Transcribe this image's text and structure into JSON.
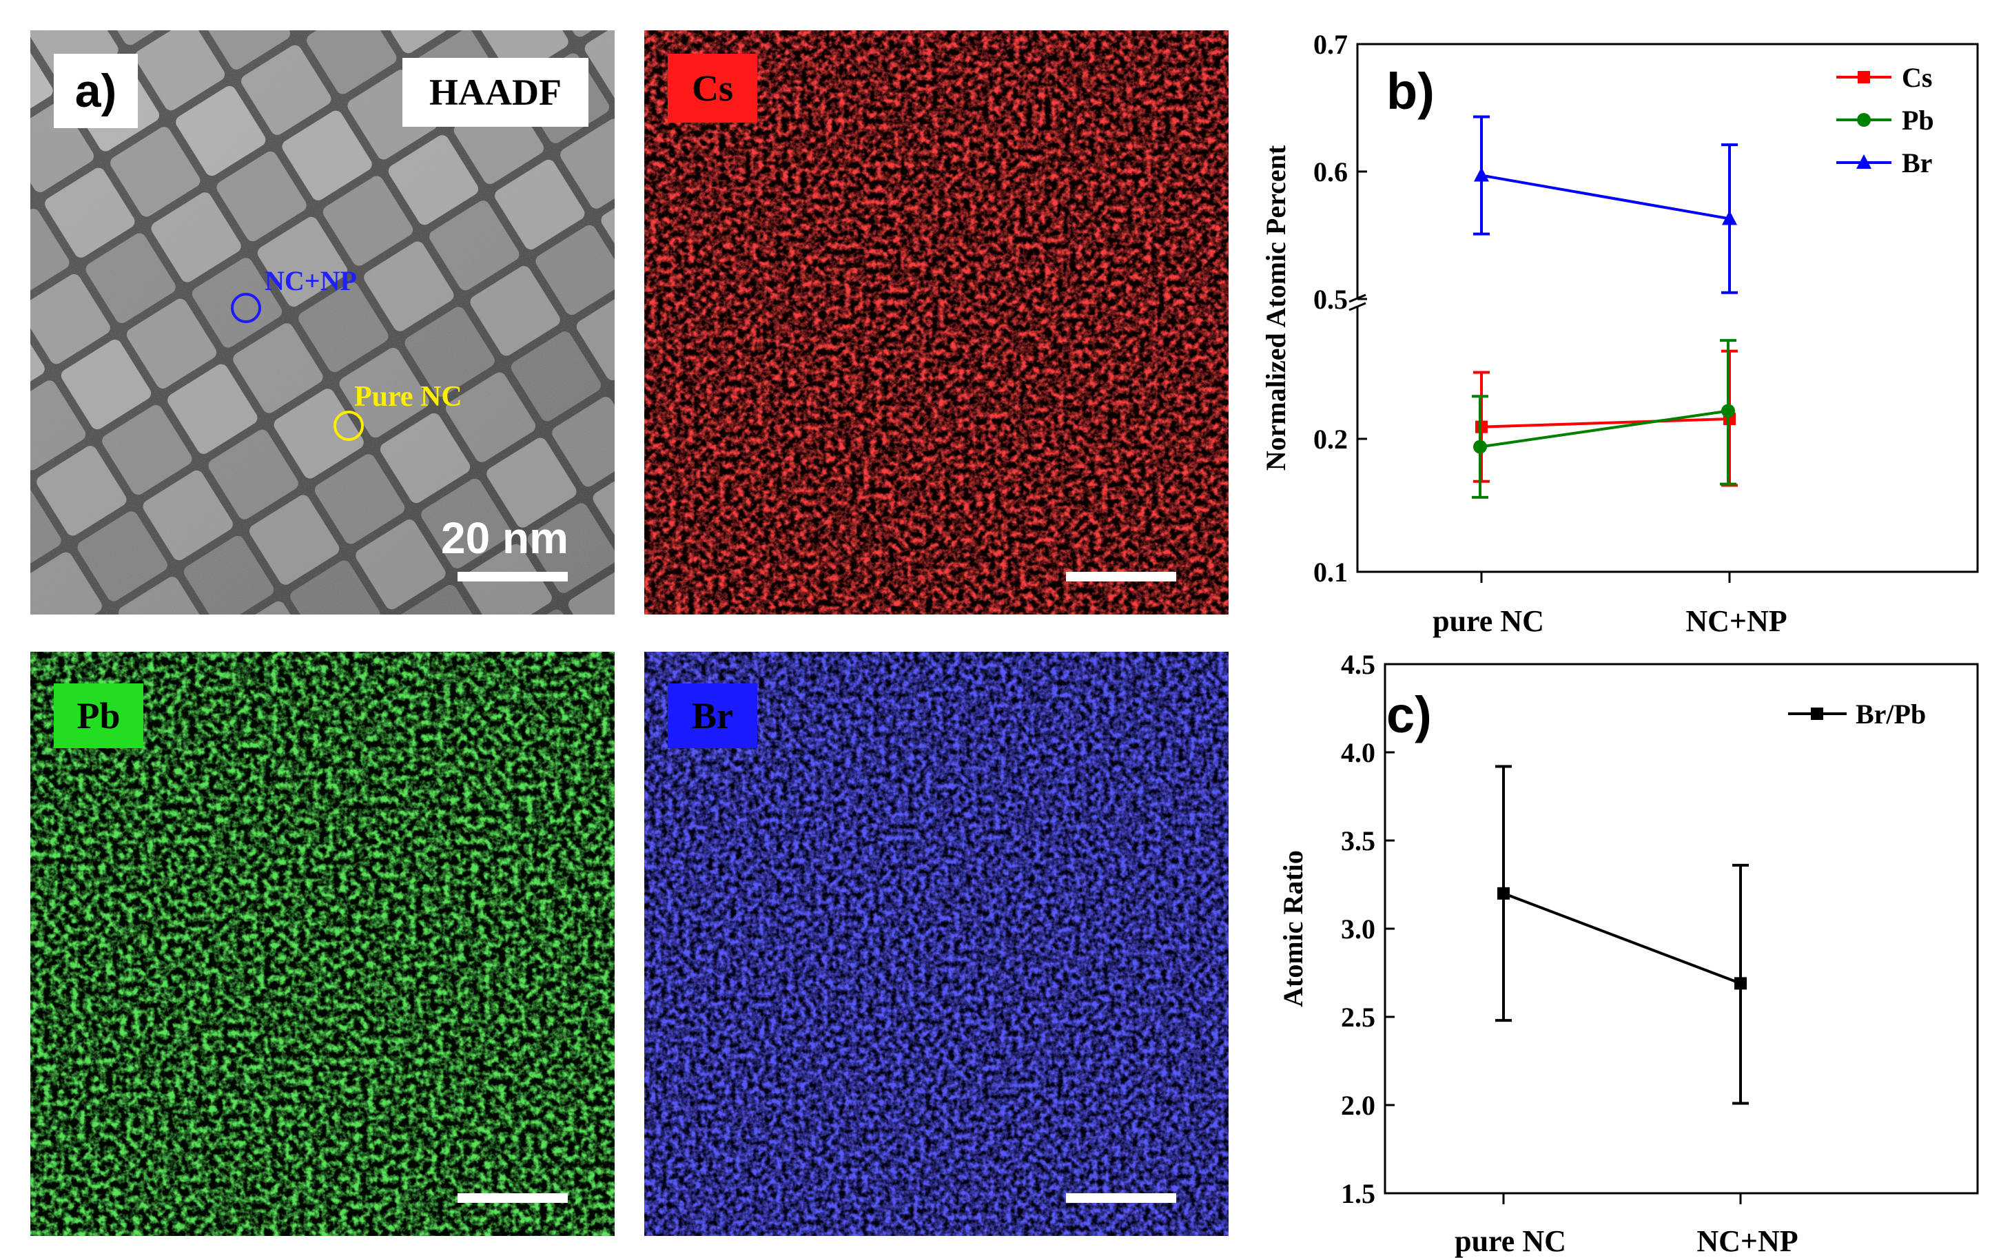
{
  "panel_a": {
    "label": "a)",
    "mode": "HAADF",
    "marker_blue": "NC+NP",
    "marker_yellow": "Pure NC",
    "scale_bar": "20 nm"
  },
  "maps": {
    "cs": {
      "label": "Cs",
      "color": "#ff1a1a"
    },
    "pb": {
      "label": "Pb",
      "color": "#22dd22"
    },
    "br": {
      "label": "Br",
      "color": "#1a1aff"
    }
  },
  "chart_data": [
    {
      "panel": "b)",
      "type": "line",
      "categories": [
        "pure NC",
        "NC+NP"
      ],
      "ylabel": "Normalized Atomic Percent",
      "xlabel": "",
      "y_ticks": [
        "0.1",
        "0.2",
        "0.5",
        "0.6",
        "0.7"
      ],
      "broken_axis": {
        "lower": [
          0.1,
          0.3
        ],
        "upper": [
          0.5,
          0.7
        ]
      },
      "legend_position": "top-right",
      "series": [
        {
          "name": "Cs",
          "color": "#ff0000",
          "marker": "square",
          "values": [
            0.209,
            0.215
          ],
          "err_low": [
            0.168,
            0.165
          ],
          "err_high": [
            0.25,
            0.266
          ]
        },
        {
          "name": "Pb",
          "color": "#008000",
          "marker": "circle",
          "values": [
            0.194,
            0.221
          ],
          "err_low": [
            0.156,
            0.166
          ],
          "err_high": [
            0.232,
            0.274
          ]
        },
        {
          "name": "Br",
          "color": "#0000ff",
          "marker": "triangle",
          "values": [
            0.597,
            0.563
          ],
          "err_low": [
            0.551,
            0.505
          ],
          "err_high": [
            0.643,
            0.621
          ]
        }
      ]
    },
    {
      "panel": "c)",
      "type": "line",
      "categories": [
        "pure NC",
        "NC+NP"
      ],
      "ylabel": "Atomic Ratio",
      "xlabel": "",
      "ylim": [
        1.5,
        4.5
      ],
      "y_ticks": [
        "1.5",
        "2.0",
        "2.5",
        "3.0",
        "3.5",
        "4.0",
        "4.5"
      ],
      "legend_position": "top-right",
      "series": [
        {
          "name": "Br/Pb",
          "color": "#000000",
          "marker": "square",
          "values": [
            3.2,
            2.69
          ],
          "err_low": [
            2.48,
            2.01
          ],
          "err_high": [
            3.92,
            3.36
          ]
        }
      ]
    }
  ]
}
